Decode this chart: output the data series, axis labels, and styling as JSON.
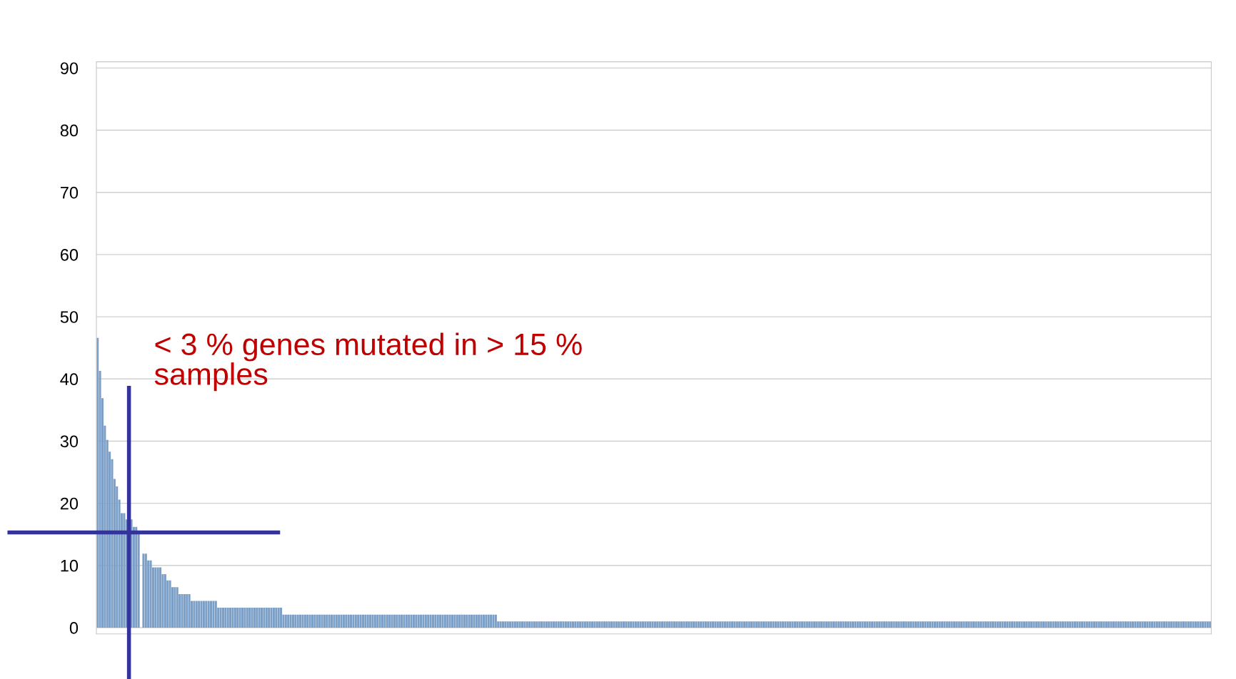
{
  "chart_data": {
    "type": "bar",
    "categories": [
      null,
      null,
      null,
      null,
      null,
      null,
      null,
      null,
      null,
      null,
      null,
      null,
      null,
      null,
      null,
      null,
      null,
      null,
      null,
      null,
      null,
      null,
      null,
      null,
      null,
      null,
      null,
      null,
      null,
      null,
      null,
      null,
      null,
      null,
      null,
      null,
      null,
      null,
      null,
      null,
      null,
      null,
      null,
      null,
      null,
      null,
      null,
      null,
      null,
      null,
      null,
      null,
      null,
      null,
      null,
      null,
      null,
      null,
      null,
      null,
      null,
      null,
      null,
      null,
      null,
      null,
      null,
      null,
      null,
      null,
      null,
      null,
      null,
      null,
      null,
      null,
      null,
      null,
      null,
      null,
      null,
      null,
      null,
      null,
      null,
      null,
      null,
      null,
      null,
      null,
      null,
      null,
      null,
      null,
      null,
      null,
      null,
      null,
      null,
      null,
      null,
      null,
      null,
      null,
      null,
      null,
      null,
      null,
      null,
      null,
      null,
      null,
      null,
      null,
      null,
      null,
      null,
      null,
      null,
      null,
      null,
      null,
      null,
      null,
      null,
      null,
      null,
      null,
      null,
      null,
      null,
      null,
      null,
      null,
      null,
      null,
      null,
      null,
      null,
      null,
      null,
      null,
      null,
      null,
      null,
      null,
      null,
      null,
      null,
      null,
      null,
      null,
      null,
      null,
      null,
      null,
      null,
      null,
      null,
      null,
      null,
      null,
      null,
      null,
      null,
      null,
      null,
      null,
      null,
      null,
      null,
      null,
      null,
      null,
      null,
      null,
      null,
      null,
      null,
      null,
      null,
      null,
      null,
      null,
      null,
      null,
      null,
      null,
      null,
      null,
      null,
      null,
      null,
      null,
      null,
      null,
      null,
      null,
      null,
      null,
      null,
      null,
      null,
      null,
      null,
      null,
      null,
      null,
      null,
      null,
      null,
      null,
      null,
      null,
      null,
      null,
      null,
      null,
      null,
      null,
      null,
      null,
      null,
      null,
      null,
      null,
      null,
      null,
      null,
      null,
      null,
      null,
      null,
      null,
      null,
      null,
      null,
      null,
      null,
      null,
      null,
      null,
      null,
      null,
      null,
      null,
      null,
      null,
      null,
      null,
      null,
      null,
      null,
      null,
      null,
      null,
      null,
      null,
      null,
      null,
      null,
      null,
      null,
      null,
      null,
      null,
      null,
      null,
      null,
      null,
      null,
      null,
      null,
      null,
      null,
      null,
      null,
      null,
      null,
      null,
      null,
      null,
      null,
      null,
      null,
      null,
      null,
      null,
      null,
      null,
      null,
      null,
      null,
      null,
      null,
      null,
      null,
      null,
      null,
      null,
      null,
      null,
      null,
      null,
      null,
      null,
      null,
      null,
      null,
      null,
      null,
      null,
      null,
      null,
      null,
      null,
      null,
      null,
      null,
      null,
      null,
      null,
      null,
      null,
      null,
      null,
      null,
      null,
      null,
      null,
      null,
      null,
      null,
      null,
      null,
      null,
      null,
      null,
      null,
      null,
      null,
      null,
      null,
      null,
      null,
      null,
      null,
      null,
      null,
      null,
      null,
      null,
      null,
      null,
      null,
      null,
      null,
      null,
      null,
      null,
      null,
      null,
      null,
      null,
      null,
      null,
      null,
      null,
      null,
      null,
      null,
      null,
      null,
      null,
      null,
      null,
      null,
      null,
      null,
      null,
      null,
      null,
      null,
      null,
      null,
      null,
      null,
      null,
      null,
      null,
      null,
      null,
      null,
      null,
      null,
      null,
      null,
      null,
      null,
      null,
      null,
      null,
      null,
      null,
      null,
      null,
      null,
      null,
      null,
      null,
      null,
      null,
      null,
      null,
      null,
      null,
      null,
      null,
      null,
      null,
      null,
      null,
      null,
      null,
      null,
      null,
      null,
      null,
      null,
      null,
      null,
      null,
      null,
      null,
      null,
      null,
      null,
      null,
      null,
      null,
      null,
      null,
      null,
      null,
      null,
      null,
      null,
      null,
      null,
      null,
      null,
      null,
      null,
      null,
      null,
      null,
      null,
      null,
      null,
      null,
      null,
      null
    ],
    "values": [
      46.6,
      41.3,
      36.9,
      32.5,
      30.2,
      28.3,
      27.1,
      23.9,
      22.7,
      20.6,
      18.4,
      18.4,
      17.4,
      null,
      17.4,
      16.2,
      16.2,
      15.5,
      null,
      11.9,
      11.9,
      10.8,
      10.8,
      9.7,
      9.7,
      9.7,
      9.7,
      8.6,
      8.6,
      7.6,
      7.6,
      6.5,
      6.5,
      6.5,
      5.4,
      5.4,
      5.4,
      5.4,
      5.4,
      4.3,
      4.3,
      4.3,
      4.3,
      4.3,
      4.3,
      4.3,
      4.3,
      4.3,
      4.3,
      4.3,
      3.2,
      3.2,
      3.2,
      3.2,
      3.2,
      3.2,
      3.2,
      3.2,
      3.2,
      3.2,
      3.2,
      3.2,
      3.2,
      3.2,
      3.2,
      3.2,
      3.2,
      3.2,
      3.2,
      3.2,
      3.2,
      3.2,
      3.2,
      3.2,
      3.2,
      3.2,
      3.2,
      2.1,
      2.1,
      2.1,
      2.1,
      2.1,
      2.1,
      2.1,
      2.1,
      2.1,
      2.1,
      2.1,
      2.1,
      2.1,
      2.1,
      2.1,
      2.1,
      2.1,
      2.1,
      2.1,
      2.1,
      2.1,
      2.1,
      2.1,
      2.1,
      2.1,
      2.1,
      2.1,
      2.1,
      2.1,
      2.1,
      2.1,
      2.1,
      2.1,
      2.1,
      2.1,
      2.1,
      2.1,
      2.1,
      2.1,
      2.1,
      2.1,
      2.1,
      2.1,
      2.1,
      2.1,
      2.1,
      2.1,
      2.1,
      2.1,
      2.1,
      2.1,
      2.1,
      2.1,
      2.1,
      2.1,
      2.1,
      2.1,
      2.1,
      2.1,
      2.1,
      2.1,
      2.1,
      2.1,
      2.1,
      2.1,
      2.1,
      2.1,
      2.1,
      2.1,
      2.1,
      2.1,
      2.1,
      2.1,
      2.1,
      2.1,
      2.1,
      2.1,
      2.1,
      2.1,
      2.1,
      2.1,
      2.1,
      2.1,
      2.1,
      2.1,
      2.1,
      2.1,
      2.1,
      2.1,
      1,
      1,
      1,
      1,
      1,
      1,
      1,
      1,
      1,
      1,
      1,
      1,
      1,
      1,
      1,
      1,
      1,
      1,
      1,
      1,
      1,
      1,
      1,
      1,
      1,
      1,
      1,
      1,
      1,
      1,
      1,
      1,
      1,
      1,
      1,
      1,
      1,
      1,
      1,
      1,
      1,
      1,
      1,
      1,
      1,
      1,
      1,
      1,
      1,
      1,
      1,
      1,
      1,
      1,
      1,
      1,
      1,
      1,
      1,
      1,
      1,
      1,
      1,
      1,
      1,
      1,
      1,
      1,
      1,
      1,
      1,
      1,
      1,
      1,
      1,
      1,
      1,
      1,
      1,
      1,
      1,
      1,
      1,
      1,
      1,
      1,
      1,
      1,
      1,
      1,
      1,
      1,
      1,
      1,
      1,
      1,
      1,
      1,
      1,
      1,
      1,
      1,
      1,
      1,
      1,
      1,
      1,
      1,
      1,
      1,
      1,
      1,
      1,
      1,
      1,
      1,
      1,
      1,
      1,
      1,
      1,
      1,
      1,
      1,
      1,
      1,
      1,
      1,
      1,
      1,
      1,
      1,
      1,
      1,
      1,
      1,
      1,
      1,
      1,
      1,
      1,
      1,
      1,
      1,
      1,
      1,
      1,
      1,
      1,
      1,
      1,
      1,
      1,
      1,
      1,
      1,
      1,
      1,
      1,
      1,
      1,
      1,
      1,
      1,
      1,
      1,
      1,
      1,
      1,
      1,
      1,
      1,
      1,
      1,
      1,
      1,
      1,
      1,
      1,
      1,
      1,
      1,
      1,
      1,
      1,
      1,
      1,
      1,
      1,
      1,
      1,
      1,
      1,
      1,
      1,
      1,
      1,
      1,
      1,
      1,
      1,
      1,
      1,
      1,
      1,
      1,
      1,
      1,
      1,
      1,
      1,
      1,
      1,
      1,
      1,
      1,
      1,
      1,
      1,
      1,
      1,
      1,
      1,
      1,
      1,
      1,
      1,
      1,
      1,
      1,
      1,
      1,
      1,
      1,
      1,
      1,
      1,
      1,
      1,
      1,
      1,
      1,
      1,
      1,
      1,
      1,
      1,
      1,
      1,
      1,
      1,
      1,
      1,
      1,
      1,
      1,
      1,
      1,
      1,
      1,
      1,
      1,
      1,
      1,
      1,
      1,
      1,
      1,
      1,
      1,
      1,
      1,
      1,
      1,
      1,
      1,
      1,
      1,
      1,
      1,
      1,
      1,
      1,
      1,
      1,
      1,
      1,
      1,
      1,
      1,
      1,
      1,
      1,
      1,
      1,
      1
    ],
    "color": "#7b9fc6",
    "ylim": [
      -1,
      91
    ],
    "yticks": [
      0,
      10,
      20,
      30,
      40,
      50,
      60,
      70,
      80,
      90
    ],
    "grid": "y",
    "tick_labels": "y",
    "ref_lines": [
      {
        "axis": "y",
        "value": 15.3,
        "color": "#333399"
      }
    ],
    "annotations": [
      "< 3 % genes mutated in > 15 %\nsamples"
    ]
  }
}
